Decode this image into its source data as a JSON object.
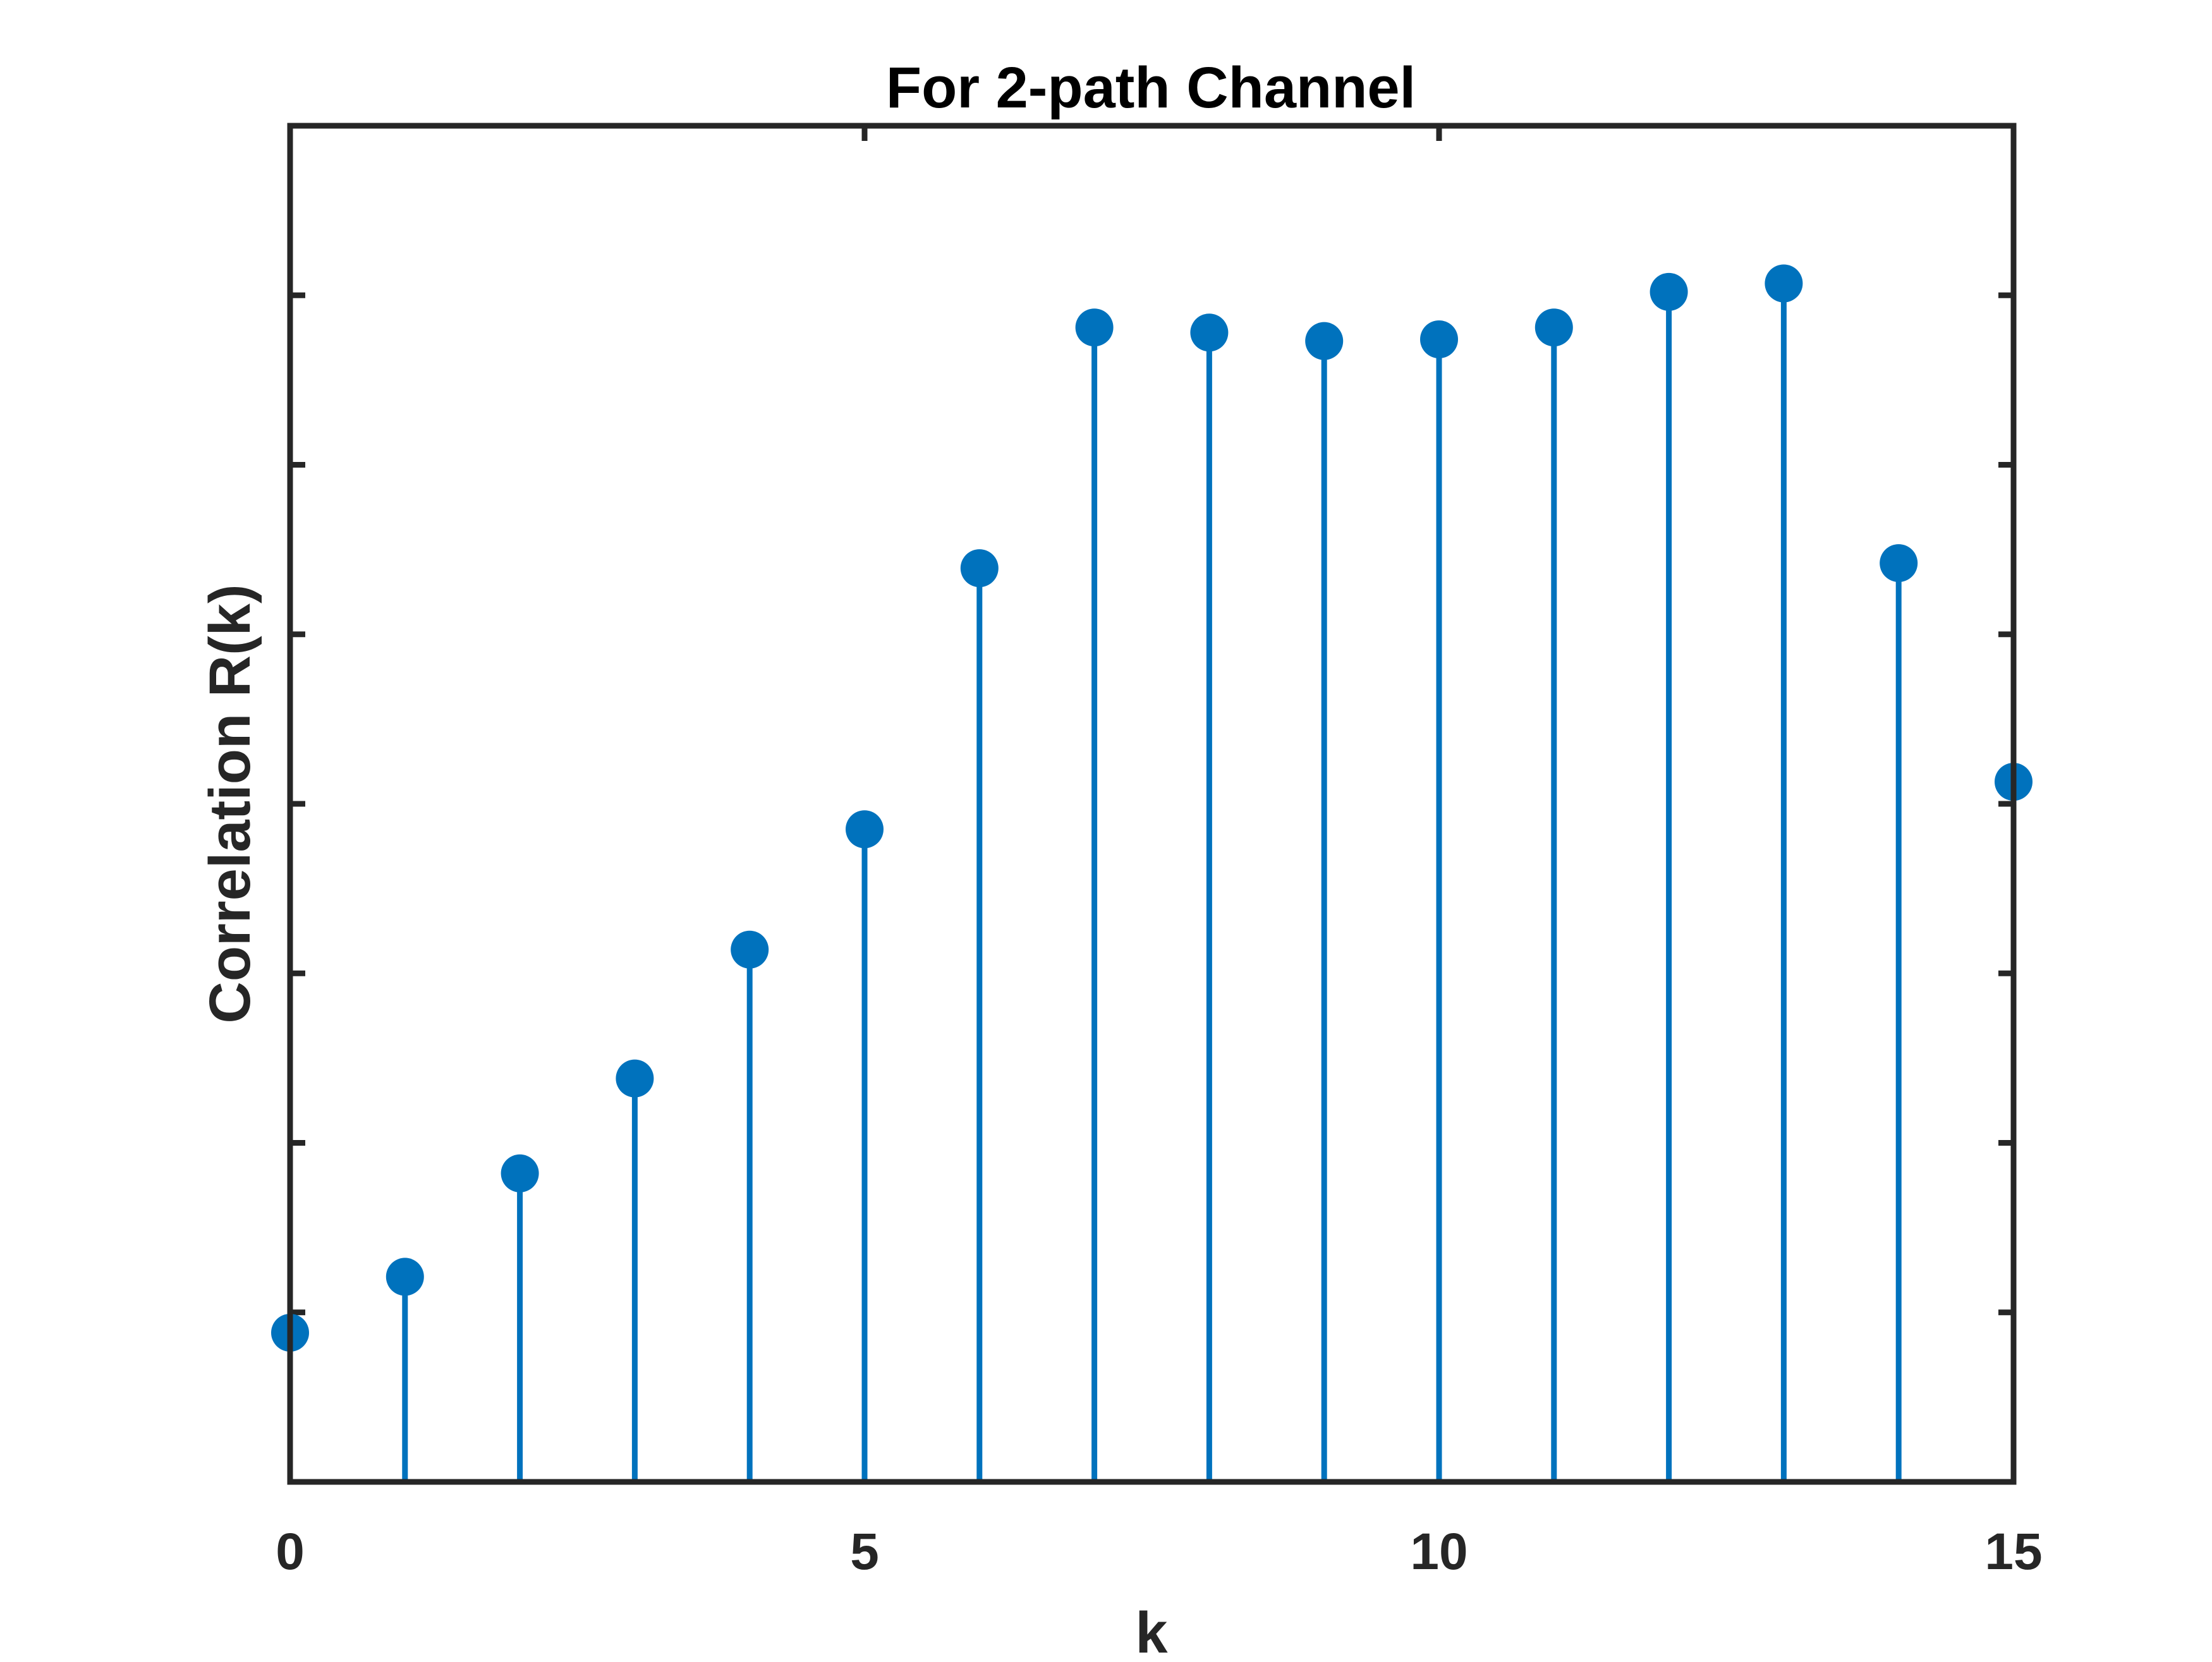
{
  "chart_data": {
    "type": "stem",
    "title": "For 2-path Channel",
    "xlabel": "k",
    "ylabel": "Correlation R(k)",
    "xlim": [
      0,
      15
    ],
    "ylim": [
      0,
      8
    ],
    "xticks": [
      0,
      5,
      10,
      15
    ],
    "ytick_count": 8,
    "yticklabels_shown": false,
    "grid": false,
    "color": "#0072BD",
    "x": [
      0,
      1,
      2,
      3,
      4,
      5,
      6,
      7,
      8,
      9,
      10,
      11,
      12,
      13,
      14,
      15
    ],
    "y": [
      0.88,
      1.21,
      1.82,
      2.38,
      3.14,
      3.85,
      5.39,
      6.81,
      6.78,
      6.73,
      6.74,
      6.81,
      7.02,
      7.07,
      5.42,
      4.13
    ]
  }
}
